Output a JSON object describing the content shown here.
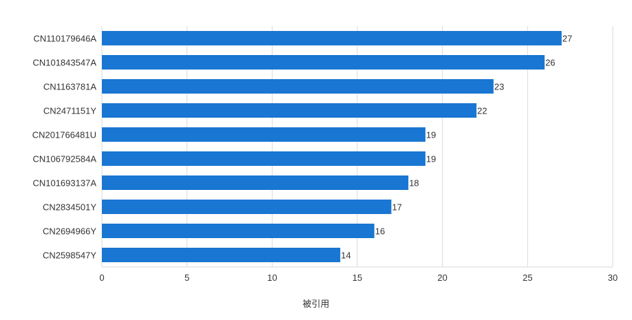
{
  "chart_data": {
    "type": "bar",
    "orientation": "horizontal",
    "categories": [
      "CN110179646A",
      "CN101843547A",
      "CN1163781A",
      "CN2471151Y",
      "CN201766481U",
      "CN106792584A",
      "CN101693137A",
      "CN2834501Y",
      "CN2694966Y",
      "CN2598547Y"
    ],
    "values": [
      27,
      26,
      23,
      22,
      19,
      19,
      18,
      17,
      16,
      14
    ],
    "xlabel": "被引用",
    "ylabel": "",
    "xlim": [
      0,
      30
    ],
    "xticks": [
      0,
      5,
      10,
      15,
      20,
      25,
      30
    ],
    "grid": true,
    "data_labels": true,
    "bar_color": "#1976d2",
    "grid_color": "#d9d9d9",
    "text_color": "#333333"
  }
}
